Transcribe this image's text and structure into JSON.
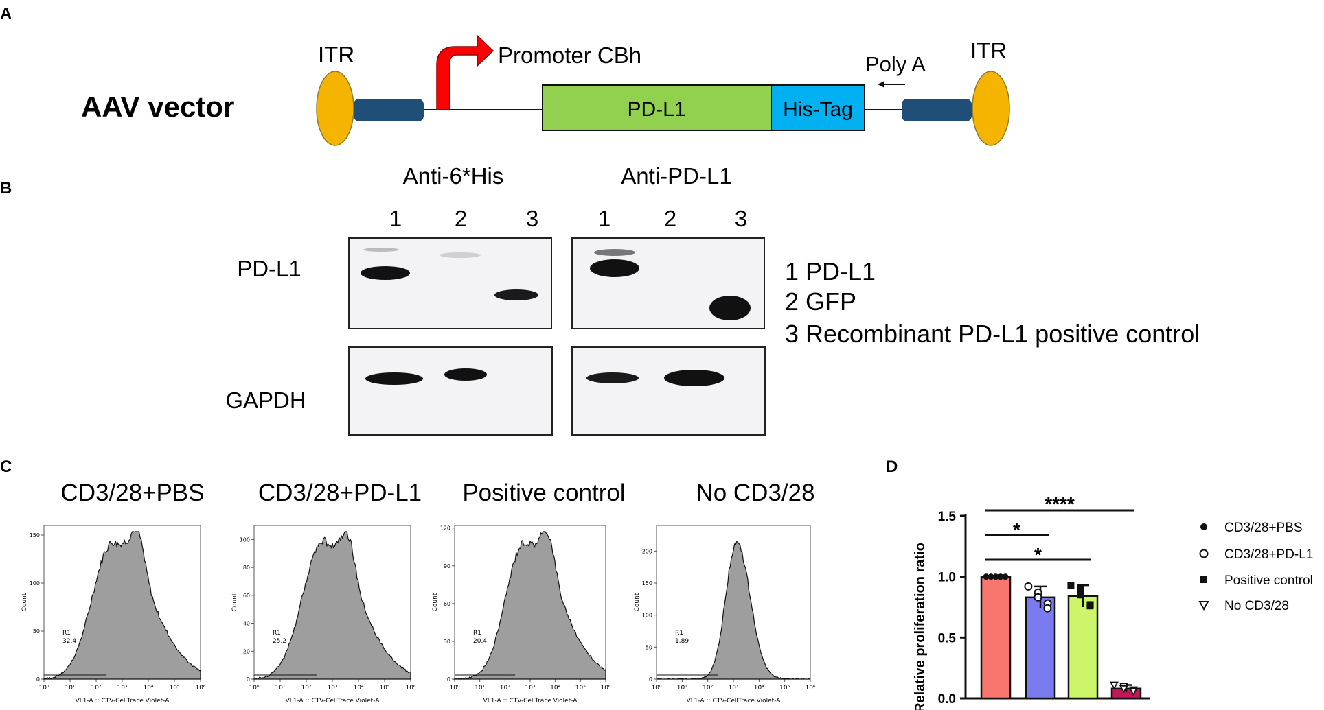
{
  "panels": {
    "A": {
      "letter": "A",
      "title": "AAV vector",
      "itr_left": "ITR",
      "itr_right": "ITR",
      "promoter": "Promoter CBh",
      "gene": "PD-L1",
      "tag": "His-Tag",
      "polya": "Poly A",
      "colors": {
        "itr": "#F5B400",
        "gene": "#92D050",
        "tag": "#00B0F0",
        "block": "#1F4E79",
        "arrow": "#FF0000"
      }
    },
    "B": {
      "letter": "B",
      "blot_left_title": "Anti-6*His",
      "blot_right_title": "Anti-PD-L1",
      "lanes": [
        "1",
        "2",
        "3"
      ],
      "row_pdl1": "PD-L1",
      "row_gapdh": "GAPDH",
      "legend": [
        "1 PD-L1",
        "2 GFP",
        "3 Recombinant PD-L1 positive control"
      ]
    },
    "C": {
      "letter": "C",
      "histograms": [
        {
          "title": "CD3/28+PBS",
          "gate": "R1",
          "value": "32.4",
          "yticks": [
            "0",
            "50",
            "100",
            "150"
          ],
          "ymax": 160
        },
        {
          "title": "CD3/28+PD-L1",
          "gate": "R1",
          "value": "25.2",
          "yticks": [
            "0",
            "20",
            "40",
            "60",
            "80",
            "100"
          ],
          "ymax": 110
        },
        {
          "title": "Positive control",
          "gate": "R1",
          "value": "20.4",
          "yticks": [
            "0",
            "30",
            "60",
            "90",
            "120"
          ],
          "ymax": 122
        },
        {
          "title": "No CD3/28",
          "gate": "R1",
          "value": "1.89",
          "yticks": [
            "0",
            "50",
            "100",
            "150",
            "200"
          ],
          "ymax": 240
        }
      ],
      "ylabel": "Count",
      "xlabel": "VL1-A :: CTV-CellTrace   Violet-A",
      "xticks": [
        "10⁰",
        "10¹",
        "10²",
        "10³",
        "10⁴",
        "10⁵",
        "10⁶"
      ]
    },
    "D": {
      "letter": "D",
      "significance": [
        "****",
        "*",
        "*"
      ]
    }
  },
  "chart_data": {
    "type": "bar",
    "ylabel": "Relative proliferation ratio",
    "ylim": [
      0,
      1.5
    ],
    "yticks": [
      "0.0",
      "0.5",
      "1.0",
      "1.5"
    ],
    "categories": [
      "CD3/28+PBS",
      "CD3/28+PD-L1",
      "Positive control",
      "No CD3/28"
    ],
    "values": [
      1.0,
      0.83,
      0.84,
      0.08
    ],
    "errors": [
      0.0,
      0.09,
      0.09,
      0.03
    ],
    "colors": [
      "#F8766D",
      "#7B7BF0",
      "#CCF56A",
      "#C2185B"
    ],
    "markers": [
      "filled-circle",
      "open-circle",
      "filled-square",
      "open-triangle-down"
    ],
    "points": [
      [
        1.0,
        1.0,
        1.0,
        1.0,
        1.0
      ],
      [
        0.92,
        0.87,
        0.83,
        0.78,
        0.74
      ],
      [
        0.93,
        0.9,
        0.85,
        0.77,
        0.76
      ],
      [
        0.11,
        0.1,
        0.08,
        0.07,
        0.06
      ]
    ],
    "legend": [
      "CD3/28+PBS",
      "CD3/28+PD-L1",
      "Positive control",
      "No CD3/28"
    ],
    "legend_position": "right"
  }
}
